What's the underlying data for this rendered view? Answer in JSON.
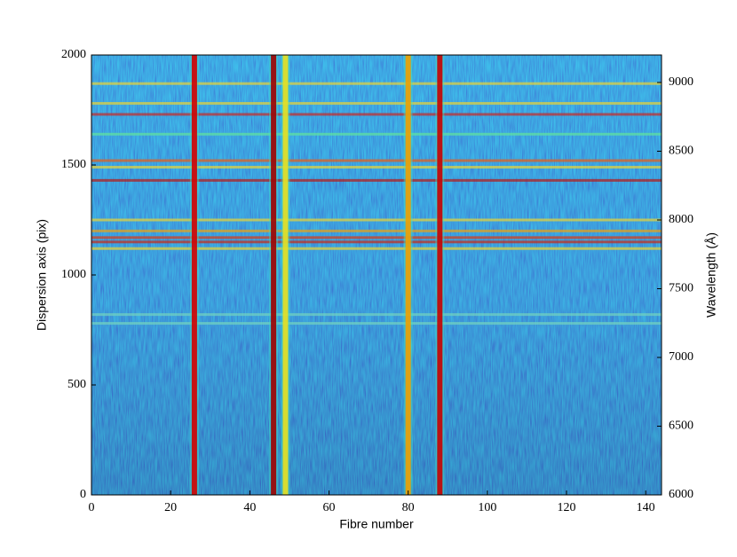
{
  "chart_data": {
    "type": "heatmap",
    "xlabel": "Fibre number",
    "ylabel": "Dispersion axis (pix)",
    "y2label": "Wavelength (Å)",
    "xlim": [
      0,
      144
    ],
    "xticks": [
      0,
      20,
      40,
      60,
      80,
      100,
      120,
      140
    ],
    "ylim": [
      0,
      2000
    ],
    "yticks": [
      0,
      500,
      1000,
      1500,
      2000
    ],
    "y2lim": [
      6000,
      9200
    ],
    "y2ticks": [
      6000,
      6500,
      7000,
      7500,
      8000,
      8500,
      9000
    ],
    "colormap": "jet",
    "bright_fibres": {
      "x": [
        26,
        46,
        49,
        80,
        88
      ],
      "colors": [
        "#d40000",
        "#a00000",
        "#e8e020",
        "#f0a000",
        "#c80000"
      ]
    },
    "sky_lines": {
      "y": [
        1870,
        1780,
        1730,
        1640,
        1520,
        1490,
        1430,
        1250,
        1200,
        1170,
        1150,
        1120,
        820,
        780
      ],
      "colors": [
        "#e0d040",
        "#e0d040",
        "#c03030",
        "#60e0a0",
        "#e06020",
        "#e0d040",
        "#b02020",
        "#e0d040",
        "#e0a020",
        "#d04020",
        "#c03020",
        "#e0d040",
        "#70d0c0",
        "#70d0c0"
      ]
    }
  }
}
